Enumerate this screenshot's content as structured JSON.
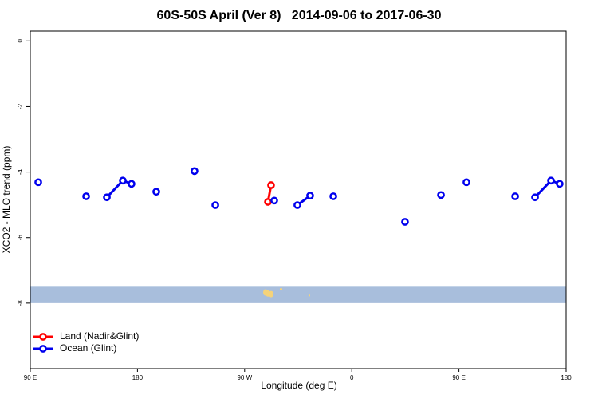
{
  "chart_data": {
    "type": "line",
    "title": "60S-50S April (Ver 8)   2014-09-06 to 2017-06-30",
    "x_label": "Longitude (deg E)",
    "y_label": "XCO2 - MLO trend (ppm)",
    "xlim": [
      90,
      540
    ],
    "xticks": [
      {
        "value": 90,
        "label": "90 E"
      },
      180,
      {
        "value": 270,
        "label": "90 W"
      },
      {
        "value": 360,
        "label": "0"
      },
      {
        "value": 450,
        "label": "90 E"
      },
      {
        "value": 540,
        "label": "180"
      }
    ],
    "ylim": [
      -10,
      0.3
    ],
    "yticks": [
      0,
      -2,
      -4,
      -6,
      -8
    ],
    "band": {
      "range": [
        -8,
        -7.5
      ],
      "color": "#a8bedc"
    },
    "legend": "bottom-left",
    "series": [
      {
        "name": "Land (Nadir&Glint)",
        "color": "#ff0000",
        "x": [
          289.6,
          292.2
        ],
        "values": [
          -4.91,
          -4.4
        ]
      },
      {
        "name": "Ocean (Glint)",
        "color": "#0000ee",
        "x": [
          96.7,
          null,
          136.9,
          null,
          154.3,
          167.7,
          175.0,
          null,
          195.8,
          null,
          227.9,
          null,
          245.4,
          null,
          294.9,
          null,
          314.3,
          325.0,
          null,
          344.5,
          null,
          404.7,
          null,
          434.9,
          null,
          456.3,
          null,
          497.2,
          null,
          513.9,
          527.3,
          534.6
        ],
        "values": [
          -4.31,
          null,
          -4.74,
          null,
          -4.77,
          -4.26,
          -4.36,
          null,
          -4.6,
          null,
          -3.97,
          null,
          -5.01,
          null,
          -4.87,
          null,
          -5.01,
          -4.72,
          null,
          -4.74,
          null,
          -5.52,
          null,
          -4.7,
          null,
          -4.31,
          null,
          -4.74,
          null,
          -4.77,
          -4.26,
          -4.36
        ]
      }
    ]
  }
}
